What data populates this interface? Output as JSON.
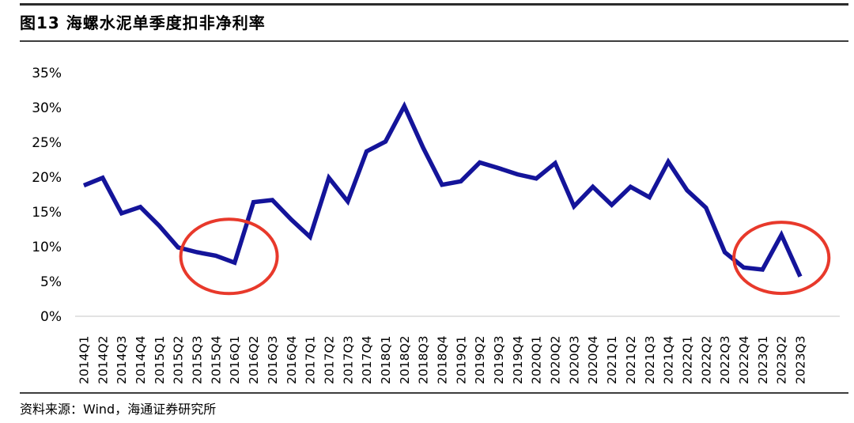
{
  "figure": {
    "title": "图13 海螺水泥单季度扣非净利率",
    "source": "资料来源：Wind，海通证券研究所"
  },
  "colors": {
    "line": "#14149A",
    "highlight_ellipse": "#E8392B",
    "axis_line": "#D9D9D9",
    "text": "#000000"
  },
  "chart_data": {
    "type": "line",
    "title": "海螺水泥单季度扣非净利率",
    "unit": "%",
    "categories": [
      "2014Q1",
      "2014Q2",
      "2014Q3",
      "2014Q4",
      "2015Q1",
      "2015Q2",
      "2015Q3",
      "2015Q4",
      "2016Q1",
      "2016Q2",
      "2016Q3",
      "2016Q4",
      "2017Q1",
      "2017Q2",
      "2017Q3",
      "2017Q4",
      "2018Q1",
      "2018Q2",
      "2018Q3",
      "2018Q4",
      "2019Q1",
      "2019Q2",
      "2019Q3",
      "2019Q4",
      "2020Q1",
      "2020Q2",
      "2020Q3",
      "2020Q4",
      "2021Q1",
      "2021Q2",
      "2021Q3",
      "2021Q4",
      "2022Q1",
      "2022Q2",
      "2022Q3",
      "2022Q4",
      "2023Q1",
      "2023Q2",
      "2023Q3"
    ],
    "values": [
      18.8,
      19.9,
      14.8,
      15.7,
      13.0,
      9.9,
      9.2,
      8.7,
      7.7,
      16.4,
      16.7,
      13.9,
      11.4,
      19.9,
      16.5,
      23.7,
      25.1,
      30.2,
      24.2,
      18.9,
      19.4,
      22.1,
      21.3,
      20.4,
      19.8,
      22.0,
      15.8,
      18.6,
      16.0,
      18.6,
      17.1,
      22.2,
      18.1,
      15.6,
      9.2,
      7.0,
      6.7,
      11.7,
      5.7
    ],
    "xlabel": "",
    "ylabel": "",
    "ylim": [
      0,
      35
    ],
    "ytick_step": 5,
    "ytick_labels": [
      "0%",
      "5%",
      "10%",
      "15%",
      "20%",
      "25%",
      "30%",
      "35%"
    ],
    "grid": false,
    "legend_position": "none",
    "annotations": [
      {
        "shape": "ellipse",
        "purpose": "highlight-trough-2015Q3-2016Q1",
        "cx_index": 7.7,
        "cy_value": 8.6,
        "rx_index_units": 2.56,
        "ry_value_units": 5.34
      },
      {
        "shape": "ellipse",
        "purpose": "highlight-trough-2022Q4-2023Q3",
        "cx_index": 37.0,
        "cy_value": 8.4,
        "rx_index_units": 2.52,
        "ry_value_units": 5.11
      }
    ]
  }
}
